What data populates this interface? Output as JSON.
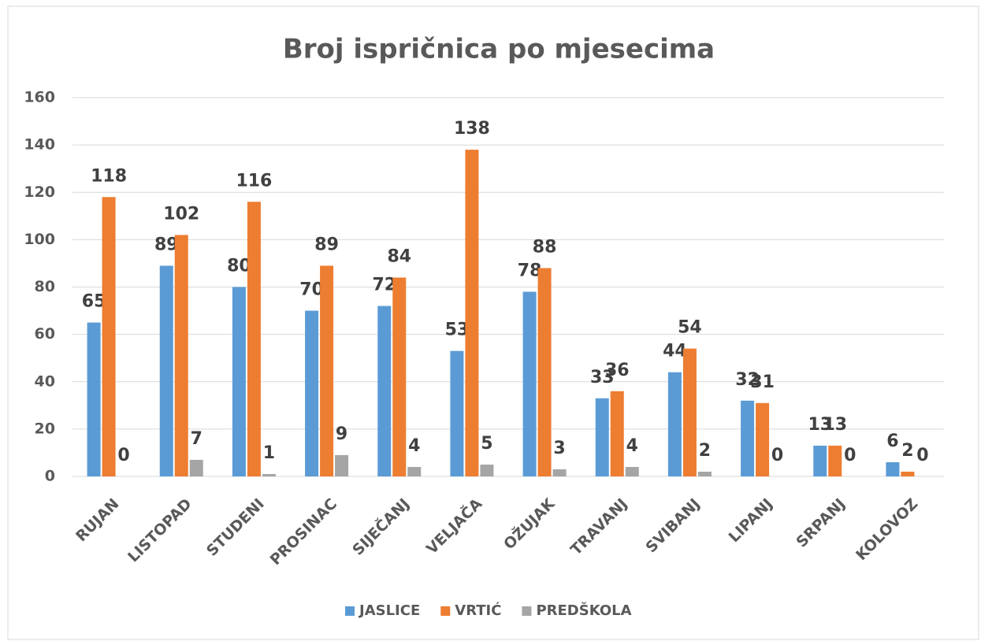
{
  "chart_data": {
    "type": "bar",
    "title": "Broj ispričnica po mjesecima",
    "categories": [
      "RUJAN",
      "LISTOPAD",
      "STUDENI",
      "PROSINAC",
      "SIJEČANJ",
      "VELJAČA",
      "OŽUJAK",
      "TRAVANJ",
      "SVIBANJ",
      "LIPANJ",
      "SRPANJ",
      "KOLOVOZ"
    ],
    "series": [
      {
        "name": "JASLICE",
        "color": "#5b9bd5",
        "values": [
          65,
          89,
          80,
          70,
          72,
          53,
          78,
          33,
          44,
          32,
          13,
          6
        ]
      },
      {
        "name": "VRTIĆ",
        "color": "#ed7d31",
        "values": [
          118,
          102,
          116,
          89,
          84,
          138,
          88,
          36,
          54,
          31,
          13,
          2
        ]
      },
      {
        "name": "PREDŠKOLA",
        "color": "#a5a5a5",
        "values": [
          0,
          7,
          1,
          9,
          4,
          5,
          3,
          4,
          2,
          0,
          0,
          0
        ]
      }
    ],
    "ylim": [
      0,
      160
    ],
    "yticks": [
      0,
      20,
      40,
      60,
      80,
      100,
      120,
      140,
      160
    ],
    "grid": true,
    "legend": "bottom"
  }
}
